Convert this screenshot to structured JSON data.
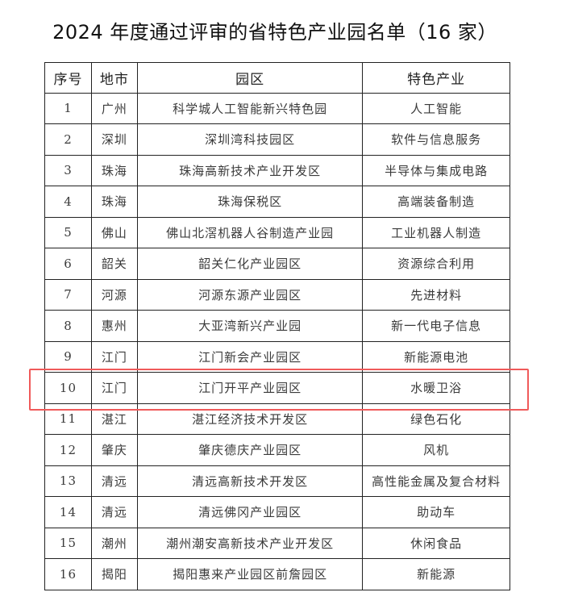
{
  "title": "2024 年度通过评审的省特色产业园名单（16 家）",
  "headers": [
    "序号",
    "地市",
    "园区",
    "特色产业"
  ],
  "rows": [
    [
      "1",
      "广州",
      "科学城人工智能新兴特色园",
      "人工智能"
    ],
    [
      "2",
      "深圳",
      "深圳湾科技园区",
      "软件与信息服务"
    ],
    [
      "3",
      "珠海",
      "珠海高新技术产业开发区",
      "半导体与集成电路"
    ],
    [
      "4",
      "珠海",
      "珠海保税区",
      "高端装备制造"
    ],
    [
      "5",
      "佛山",
      "佛山北滘机器人谷制造产业园",
      "工业机器人制造"
    ],
    [
      "6",
      "韶关",
      "韶关仁化产业园区",
      "资源综合利用"
    ],
    [
      "7",
      "河源",
      "河源东源产业园区",
      "先进材料"
    ],
    [
      "8",
      "惠州",
      "大亚湾新兴产业园",
      "新一代电子信息"
    ],
    [
      "9",
      "江门",
      "江门新会产业园区",
      "新能源电池"
    ],
    [
      "10",
      "江门",
      "江门开平产业园区",
      "水暖卫浴"
    ],
    [
      "11",
      "湛江",
      "湛江经济技术开发区",
      "绿色石化"
    ],
    [
      "12",
      "肇庆",
      "肇庆德庆产业园区",
      "风机"
    ],
    [
      "13",
      "清远",
      "清远高新技术开发区",
      "高性能金属及复合材料"
    ],
    [
      "14",
      "清远",
      "清远佛冈产业园区",
      "助动车"
    ],
    [
      "15",
      "潮州",
      "潮州潮安高新技术产业开发区",
      "休闲食品"
    ],
    [
      "16",
      "揭阳",
      "揭阳惠来产业园区前詹园区",
      "新能源"
    ]
  ],
  "highlight": {
    "row": "10",
    "color": "#f05a5a"
  }
}
